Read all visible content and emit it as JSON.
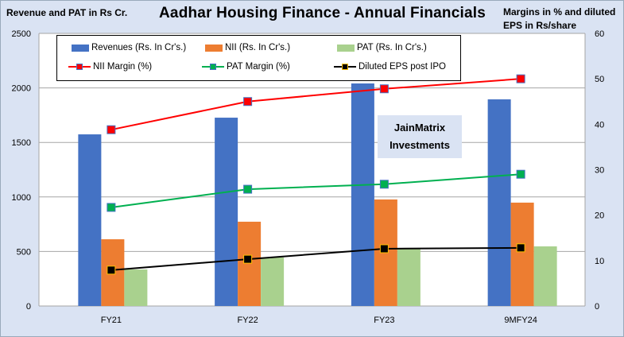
{
  "chart_data": {
    "type": "bar",
    "title": "Aadhar Housing Finance - Annual Financials",
    "ylabel_left": "Revenue and PAT in Rs Cr.",
    "ylabel_right": "Margins in % and diluted EPS in Rs/share",
    "categories": [
      "FY21",
      "FY22",
      "FY23",
      "9MFY24"
    ],
    "ylim_left": [
      0,
      2500
    ],
    "yticks_left": [
      "0",
      "500",
      "1000",
      "1500",
      "2000",
      "2500"
    ],
    "ylim_right": [
      0,
      60
    ],
    "yticks_right": [
      "0",
      "10",
      "20",
      "30",
      "40",
      "50",
      "60"
    ],
    "grid": true,
    "legend_placement": "top-left inside",
    "bar_series": [
      {
        "name": "Revenues (Rs. In Cr's.)",
        "color": "#4472c4",
        "values": [
          1574,
          1727,
          2041,
          1895
        ]
      },
      {
        "name": "NII  (Rs. In Cr's.)",
        "color": "#ed7d31",
        "values": [
          612,
          773,
          977,
          948
        ]
      },
      {
        "name": "PAT  (Rs. In Cr's.)",
        "color": "#a9d18e",
        "values": [
          335,
          445,
          525,
          547
        ]
      }
    ],
    "line_series": [
      {
        "name": "NII Margin (%)",
        "color": "#ff0000",
        "marker": "#ff0000",
        "marker_edge": "#4472c4",
        "values": [
          38.8,
          45.0,
          47.8,
          50.0
        ]
      },
      {
        "name": "PAT Margin (%)",
        "color": "#00b050",
        "marker": "#00b050",
        "marker_edge": "#4472c4",
        "values": [
          21.7,
          25.7,
          26.8,
          29.0
        ]
      },
      {
        "name": "Diluted EPS post IPO",
        "color": "#000000",
        "marker": "#000000",
        "marker_edge": "#ffc000",
        "values": [
          7.9,
          10.3,
          12.6,
          12.8
        ]
      }
    ]
  },
  "watermark": {
    "line1": "JainMatrix",
    "line2": "Investments"
  }
}
